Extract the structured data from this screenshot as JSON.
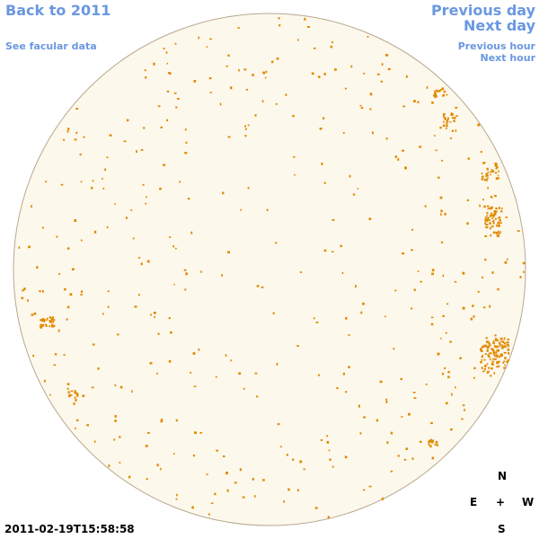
{
  "nav": {
    "back_label": "Back to 2011",
    "facular_label": "See facular data",
    "previous_day_label": "Previous day",
    "next_day_label": "Next day",
    "previous_hour_label": "Previous hour",
    "next_hour_label": "Next hour"
  },
  "compass": {
    "north": "N",
    "east": "E",
    "center": "+",
    "west": "W",
    "south": "S"
  },
  "timestamp": "2011-02-19T15:58:58",
  "colors": {
    "link": "#6a98e0",
    "disk_fill": "#fdf8ec",
    "disk_edge": "#b8a890",
    "facula": "#e08a00",
    "text": "#000000"
  }
}
